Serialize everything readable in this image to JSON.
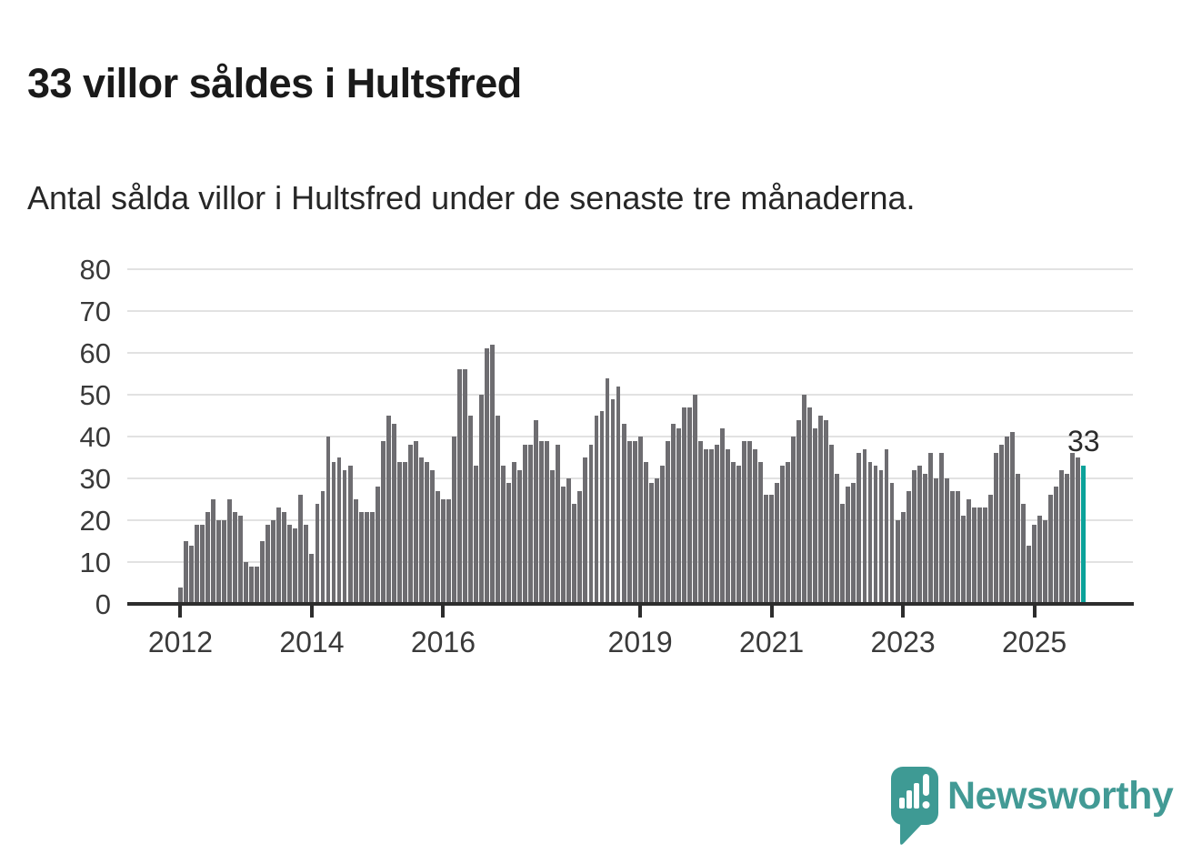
{
  "header": {
    "title": "33 villor såldes i Hultsfred",
    "subtitle": "Antal sålda villor i Hultsfred under de senaste tre månaderna."
  },
  "chart_data": {
    "type": "bar",
    "title": "33 villor såldes i Hultsfred",
    "xlabel": "",
    "ylabel": "",
    "frequency": "monthly",
    "start_month": "2012-01",
    "end_month": "2025-10",
    "values": [
      4,
      15,
      14,
      19,
      19,
      22,
      25,
      20,
      20,
      25,
      22,
      21,
      10,
      9,
      9,
      15,
      19,
      20,
      23,
      22,
      19,
      18,
      26,
      19,
      12,
      24,
      27,
      40,
      34,
      35,
      32,
      33,
      25,
      22,
      22,
      22,
      28,
      39,
      45,
      43,
      34,
      34,
      38,
      39,
      35,
      34,
      32,
      27,
      25,
      25,
      40,
      56,
      56,
      45,
      33,
      50,
      61,
      62,
      45,
      33,
      29,
      34,
      32,
      38,
      38,
      44,
      39,
      39,
      32,
      38,
      28,
      30,
      24,
      27,
      35,
      38,
      45,
      46,
      54,
      49,
      52,
      43,
      39,
      39,
      40,
      34,
      29,
      30,
      33,
      39,
      43,
      42,
      47,
      47,
      50,
      39,
      37,
      37,
      38,
      42,
      37,
      34,
      33,
      39,
      39,
      37,
      34,
      26,
      26,
      29,
      33,
      34,
      40,
      44,
      50,
      47,
      42,
      45,
      44,
      38,
      31,
      24,
      28,
      29,
      36,
      37,
      34,
      33,
      32,
      37,
      29,
      20,
      22,
      27,
      32,
      33,
      31,
      36,
      30,
      36,
      30,
      27,
      27,
      21,
      25,
      23,
      23,
      23,
      26,
      36,
      38,
      40,
      41,
      31,
      24,
      14,
      19,
      21,
      20,
      26,
      28,
      32,
      31,
      36,
      35,
      33
    ],
    "highlight_last": true,
    "annotation": "33",
    "y_ticks": [
      0,
      10,
      20,
      30,
      40,
      50,
      60,
      70,
      80
    ],
    "ylim": [
      0,
      80
    ],
    "x_ticks": [
      {
        "label": "2012",
        "month": 0
      },
      {
        "label": "2014",
        "month": 24
      },
      {
        "label": "2016",
        "month": 48
      },
      {
        "label": "2019",
        "month": 84
      },
      {
        "label": "2021",
        "month": 108
      },
      {
        "label": "2023",
        "month": 132
      },
      {
        "label": "2025",
        "month": 156
      }
    ],
    "grid": true,
    "legend": "none",
    "colors": {
      "bar": "#6e6d71",
      "highlight": "#0ca29a",
      "grid": "#e2e2e2",
      "axis": "#2d2d2d",
      "tick_text": "#3a3a3a"
    }
  },
  "footer": {
    "brand": "Newsworthy",
    "brand_color": "#429a95"
  }
}
